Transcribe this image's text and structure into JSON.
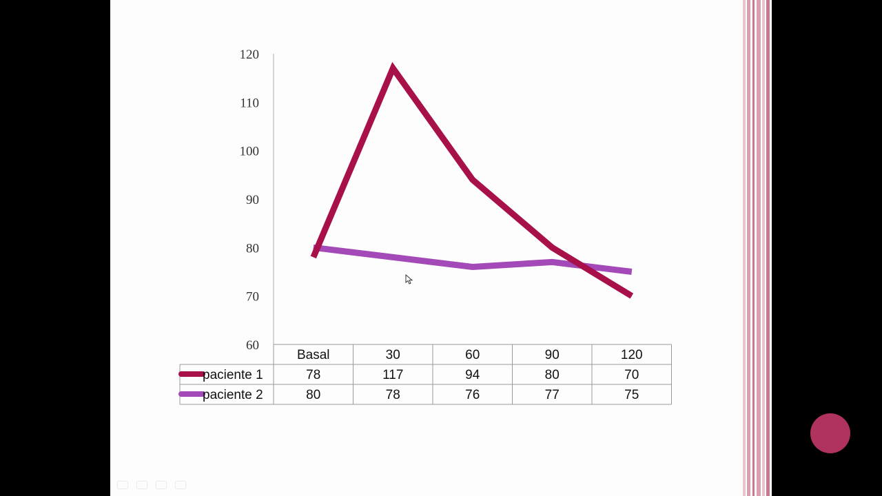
{
  "theme": {
    "background": "#000000",
    "slide": "#fdfdfd",
    "accent": "#b0325f",
    "stripe_colors": [
      "#e7c5cd",
      "#d9a0b1",
      "#c9798e"
    ]
  },
  "chart_data": {
    "type": "line",
    "title": "",
    "xlabel": "",
    "ylabel": "",
    "categories": [
      "Basal",
      "30",
      "60",
      "90",
      "120"
    ],
    "ylim": [
      60,
      120
    ],
    "yticks": [
      60,
      70,
      80,
      90,
      100,
      110,
      120
    ],
    "grid": false,
    "legend": "data-table",
    "series": [
      {
        "name": "paciente 1",
        "color": "#a8104a",
        "values": [
          78,
          117,
          94,
          80,
          70
        ]
      },
      {
        "name": "paciente 2",
        "color": "#a349b8",
        "values": [
          80,
          78,
          76,
          77,
          75
        ]
      }
    ]
  }
}
